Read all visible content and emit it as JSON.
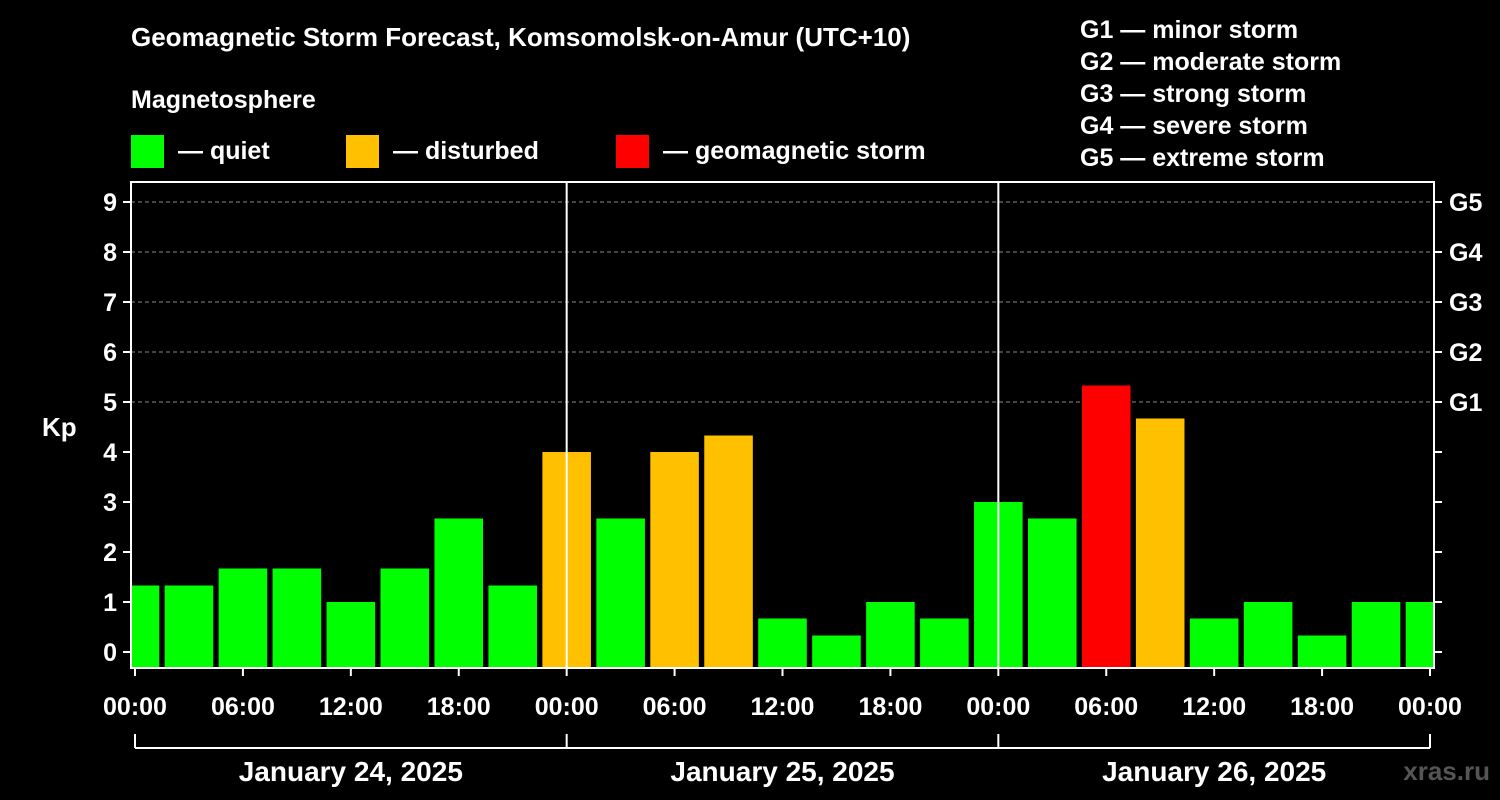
{
  "title": "Geomagnetic Storm Forecast, Komsomolsk-on-Amur (UTC+10)",
  "legend": {
    "heading": "Magnetosphere",
    "items": [
      {
        "label": "— quiet",
        "color": "#00ff00"
      },
      {
        "label": "— disturbed",
        "color": "#ffc000"
      },
      {
        "label": "— geomagnetic storm",
        "color": "#ff0000"
      }
    ]
  },
  "g_levels": [
    "G1 — minor storm",
    "G2 — moderate storm",
    "G3 — strong storm",
    "G4 — severe storm",
    "G5 — extreme storm"
  ],
  "watermark": "xras.ru",
  "chart_data": {
    "type": "bar",
    "ylabel": "Kp",
    "ylim": [
      0,
      9
    ],
    "y_ticks": [
      0,
      1,
      2,
      3,
      4,
      5,
      6,
      7,
      8,
      9
    ],
    "right_axis_labels": [
      {
        "value": 5,
        "label": "G1"
      },
      {
        "value": 6,
        "label": "G2"
      },
      {
        "value": 7,
        "label": "G3"
      },
      {
        "value": 8,
        "label": "G4"
      },
      {
        "value": 9,
        "label": "G5"
      }
    ],
    "x_tick_labels": [
      "00:00",
      "06:00",
      "12:00",
      "18:00",
      "00:00",
      "06:00",
      "12:00",
      "18:00",
      "00:00",
      "06:00",
      "12:00",
      "18:00",
      "00:00"
    ],
    "dates": [
      "January 24, 2025",
      "January 25, 2025",
      "January 26, 2025"
    ],
    "grid": "horizontal dashed",
    "colors": {
      "quiet": "#00ff00",
      "disturbed": "#ffc000",
      "storm": "#ff0000"
    },
    "bars": [
      {
        "start_hour": -1.5,
        "kp": 1.33,
        "level": "quiet"
      },
      {
        "start_hour": 1.5,
        "kp": 1.33,
        "level": "quiet"
      },
      {
        "start_hour": 4.5,
        "kp": 1.67,
        "level": "quiet"
      },
      {
        "start_hour": 7.5,
        "kp": 1.67,
        "level": "quiet"
      },
      {
        "start_hour": 10.5,
        "kp": 1.0,
        "level": "quiet"
      },
      {
        "start_hour": 13.5,
        "kp": 1.67,
        "level": "quiet"
      },
      {
        "start_hour": 16.5,
        "kp": 2.67,
        "level": "quiet"
      },
      {
        "start_hour": 19.5,
        "kp": 1.33,
        "level": "quiet"
      },
      {
        "start_hour": 22.5,
        "kp": 4.0,
        "level": "disturbed"
      },
      {
        "start_hour": 25.5,
        "kp": 2.67,
        "level": "quiet"
      },
      {
        "start_hour": 28.5,
        "kp": 4.0,
        "level": "disturbed"
      },
      {
        "start_hour": 31.5,
        "kp": 4.33,
        "level": "disturbed"
      },
      {
        "start_hour": 34.5,
        "kp": 0.67,
        "level": "quiet"
      },
      {
        "start_hour": 37.5,
        "kp": 0.33,
        "level": "quiet"
      },
      {
        "start_hour": 40.5,
        "kp": 1.0,
        "level": "quiet"
      },
      {
        "start_hour": 43.5,
        "kp": 0.67,
        "level": "quiet"
      },
      {
        "start_hour": 46.5,
        "kp": 3.0,
        "level": "quiet"
      },
      {
        "start_hour": 49.5,
        "kp": 2.67,
        "level": "quiet"
      },
      {
        "start_hour": 52.5,
        "kp": 5.33,
        "level": "storm"
      },
      {
        "start_hour": 55.5,
        "kp": 4.67,
        "level": "disturbed"
      },
      {
        "start_hour": 58.5,
        "kp": 0.67,
        "level": "quiet"
      },
      {
        "start_hour": 61.5,
        "kp": 1.0,
        "level": "quiet"
      },
      {
        "start_hour": 64.5,
        "kp": 0.33,
        "level": "quiet"
      },
      {
        "start_hour": 67.5,
        "kp": 1.0,
        "level": "quiet"
      },
      {
        "start_hour": 70.5,
        "kp": 1.0,
        "level": "quiet"
      }
    ]
  }
}
